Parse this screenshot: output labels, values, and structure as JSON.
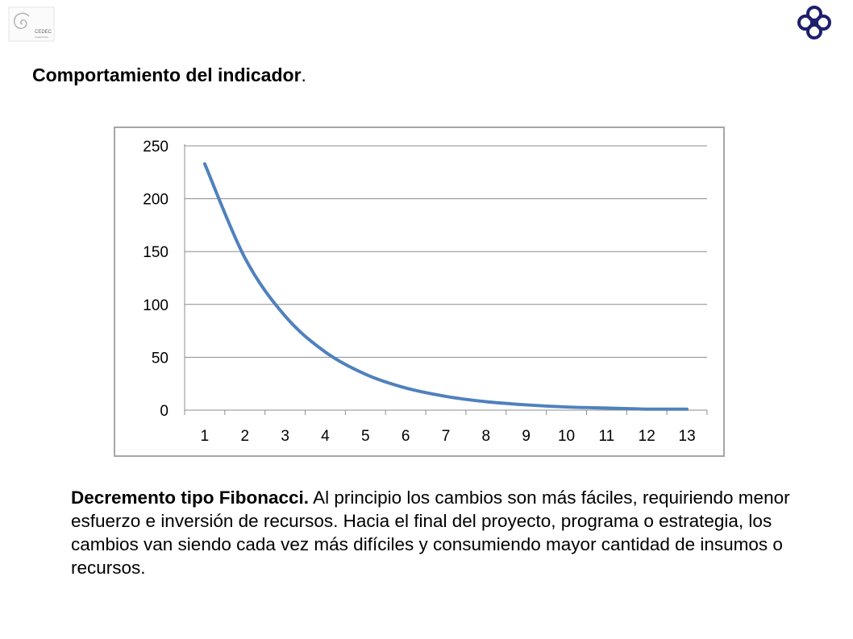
{
  "heading": {
    "bold_text": "Comportamiento del indicador",
    "suffix": "."
  },
  "logos": {
    "left": {
      "name": "cedec-logo",
      "text": "CEDEC",
      "subtext": "Capacitación"
    },
    "right": {
      "name": "quatrefoil-logo",
      "color": "#1f1f6e"
    }
  },
  "chart_data": {
    "type": "line",
    "title": "",
    "xlabel": "",
    "ylabel": "",
    "categories": [
      "1",
      "2",
      "3",
      "4",
      "5",
      "6",
      "7",
      "8",
      "9",
      "10",
      "11",
      "12",
      "13"
    ],
    "series": [
      {
        "values": [
          233,
          144,
          89,
          55,
          34,
          21,
          13,
          8,
          5,
          3,
          2,
          1,
          1
        ],
        "color": "#4f81bd"
      }
    ],
    "ylim": [
      0,
      250
    ],
    "yticks": [
      0,
      50,
      100,
      150,
      200,
      250
    ],
    "grid": true,
    "legend": "none",
    "smooth": true
  },
  "description": {
    "bold_text": "Decremento tipo Fibonacci.",
    "text": " Al principio los cambios son más fáciles, requiriendo menor esfuerzo e inversión de recursos. Hacia el final del proyecto, programa o estrategia, los cambios van siendo cada vez más difíciles y consumiendo mayor cantidad de insumos o recursos."
  }
}
